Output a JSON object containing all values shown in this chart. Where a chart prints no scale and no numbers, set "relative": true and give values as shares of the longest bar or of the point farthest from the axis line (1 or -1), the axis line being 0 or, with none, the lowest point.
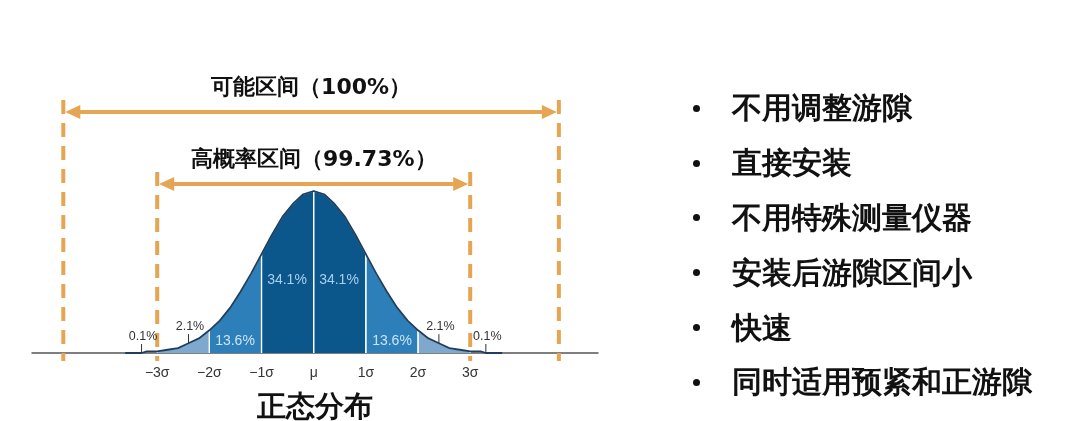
{
  "chart_data": [
    {
      "type": "area",
      "relative": true,
      "xlabel": "正态分布",
      "xlim": [
        -5.4,
        5.45
      ],
      "xticks": [
        {
          "value": -3,
          "label": "−3σ"
        },
        {
          "value": -2,
          "label": "−2σ"
        },
        {
          "value": -1,
          "label": "−1σ"
        },
        {
          "value": 0,
          "label": "μ"
        },
        {
          "value": 1,
          "label": "1σ"
        },
        {
          "value": 2,
          "label": "2σ"
        },
        {
          "value": 3,
          "label": "3σ"
        }
      ],
      "tick_labels": "x",
      "series": [
        {
          "type": "area",
          "color": "#7ea8ce",
          "x": [
            -3,
            -3,
            -2.8,
            -2.6,
            -2.4,
            -2.2,
            -2,
            -2
          ],
          "values": [
            0,
            0.01,
            0.02,
            0.03,
            0.06,
            0.09,
            0.14,
            0
          ]
        },
        {
          "type": "area",
          "color": "#2c7fb8",
          "x": [
            -2,
            -2,
            -1.8,
            -1.6,
            -1.4,
            -1.2,
            -1,
            -1
          ],
          "values": [
            0,
            0.14,
            0.2,
            0.28,
            0.38,
            0.49,
            0.61,
            0
          ]
        },
        {
          "type": "area",
          "color": "#0b568a",
          "x": [
            -1,
            -1,
            -0.8,
            -0.6,
            -0.4,
            -0.2,
            0,
            0
          ],
          "values": [
            0,
            0.61,
            0.73,
            0.84,
            0.92,
            0.98,
            1,
            0
          ]
        },
        {
          "type": "area",
          "color": "#0b568a",
          "x": [
            0,
            0,
            0.2,
            0.4,
            0.6,
            0.8,
            1,
            1
          ],
          "values": [
            0,
            1,
            0.98,
            0.92,
            0.84,
            0.73,
            0.61,
            0
          ]
        },
        {
          "type": "area",
          "color": "#2c7fb8",
          "x": [
            1,
            1,
            1.2,
            1.4,
            1.6,
            1.8,
            2,
            2
          ],
          "values": [
            0,
            0.61,
            0.49,
            0.38,
            0.28,
            0.2,
            0.14,
            0
          ]
        },
        {
          "type": "area",
          "color": "#7ea8ce",
          "x": [
            2,
            2,
            2.2,
            2.4,
            2.6,
            2.8,
            3,
            3
          ],
          "values": [
            0,
            0.14,
            0.09,
            0.06,
            0.03,
            0.02,
            0.01,
            0
          ]
        },
        {
          "type": "line",
          "color": "#1f3d5c",
          "x": [
            -3.6,
            -3.4,
            -3.3,
            -3.2,
            -3,
            -2.8,
            -2.6,
            -2.4,
            -2.2,
            -2,
            -1.8,
            -1.6,
            -1.4,
            -1.2,
            -1,
            -0.8,
            -0.6,
            -0.4,
            -0.2,
            0,
            0.2,
            0.4,
            0.6,
            0.8,
            1,
            1.2,
            1.4,
            1.6,
            1.8,
            2,
            2.2,
            2.4,
            2.6,
            2.8,
            3,
            3.2,
            3.3,
            3.4,
            3.6
          ],
          "values": [
            0,
            0,
            0,
            0.01,
            0.01,
            0.02,
            0.03,
            0.06,
            0.09,
            0.14,
            0.2,
            0.28,
            0.38,
            0.49,
            0.61,
            0.73,
            0.84,
            0.92,
            0.98,
            1,
            0.98,
            0.92,
            0.84,
            0.73,
            0.61,
            0.49,
            0.38,
            0.28,
            0.2,
            0.14,
            0.09,
            0.06,
            0.03,
            0.02,
            0.01,
            0.01,
            0,
            0,
            0
          ]
        }
      ],
      "ref_lines": [
        {
          "axis": "x",
          "value": -4.8,
          "color": "#e5a552",
          "line_style": "dashed"
        },
        {
          "axis": "x",
          "value": 4.7,
          "color": "#e5a552",
          "line_style": "dashed"
        },
        {
          "axis": "x",
          "value": -3,
          "color": "#e5a552",
          "line_style": "dashed"
        },
        {
          "axis": "x",
          "value": 3,
          "color": "#e5a552",
          "line_style": "dashed"
        }
      ],
      "annotations": [
        "可能区间（100%）",
        "高概率区间（99.73%）",
        "34.1%",
        "34.1%",
        "13.6%",
        "13.6%",
        {
          "text": "2.1%",
          "x": -2.4,
          "y": 0.06
        },
        {
          "text": "2.1%",
          "x": 2.4,
          "y": 0.06
        },
        {
          "text": "0.1%",
          "x": -3.3,
          "y": 0
        },
        {
          "text": "0.1%",
          "x": 3.3,
          "y": 0
        }
      ]
    },
    {
      "type": "other",
      "annotations": [
        "不用调整游隙",
        "直接安装",
        "不用特殊测量仪器",
        "安装后游隙区间小",
        "快速",
        "同时适用预紧和正游隙"
      ]
    }
  ]
}
